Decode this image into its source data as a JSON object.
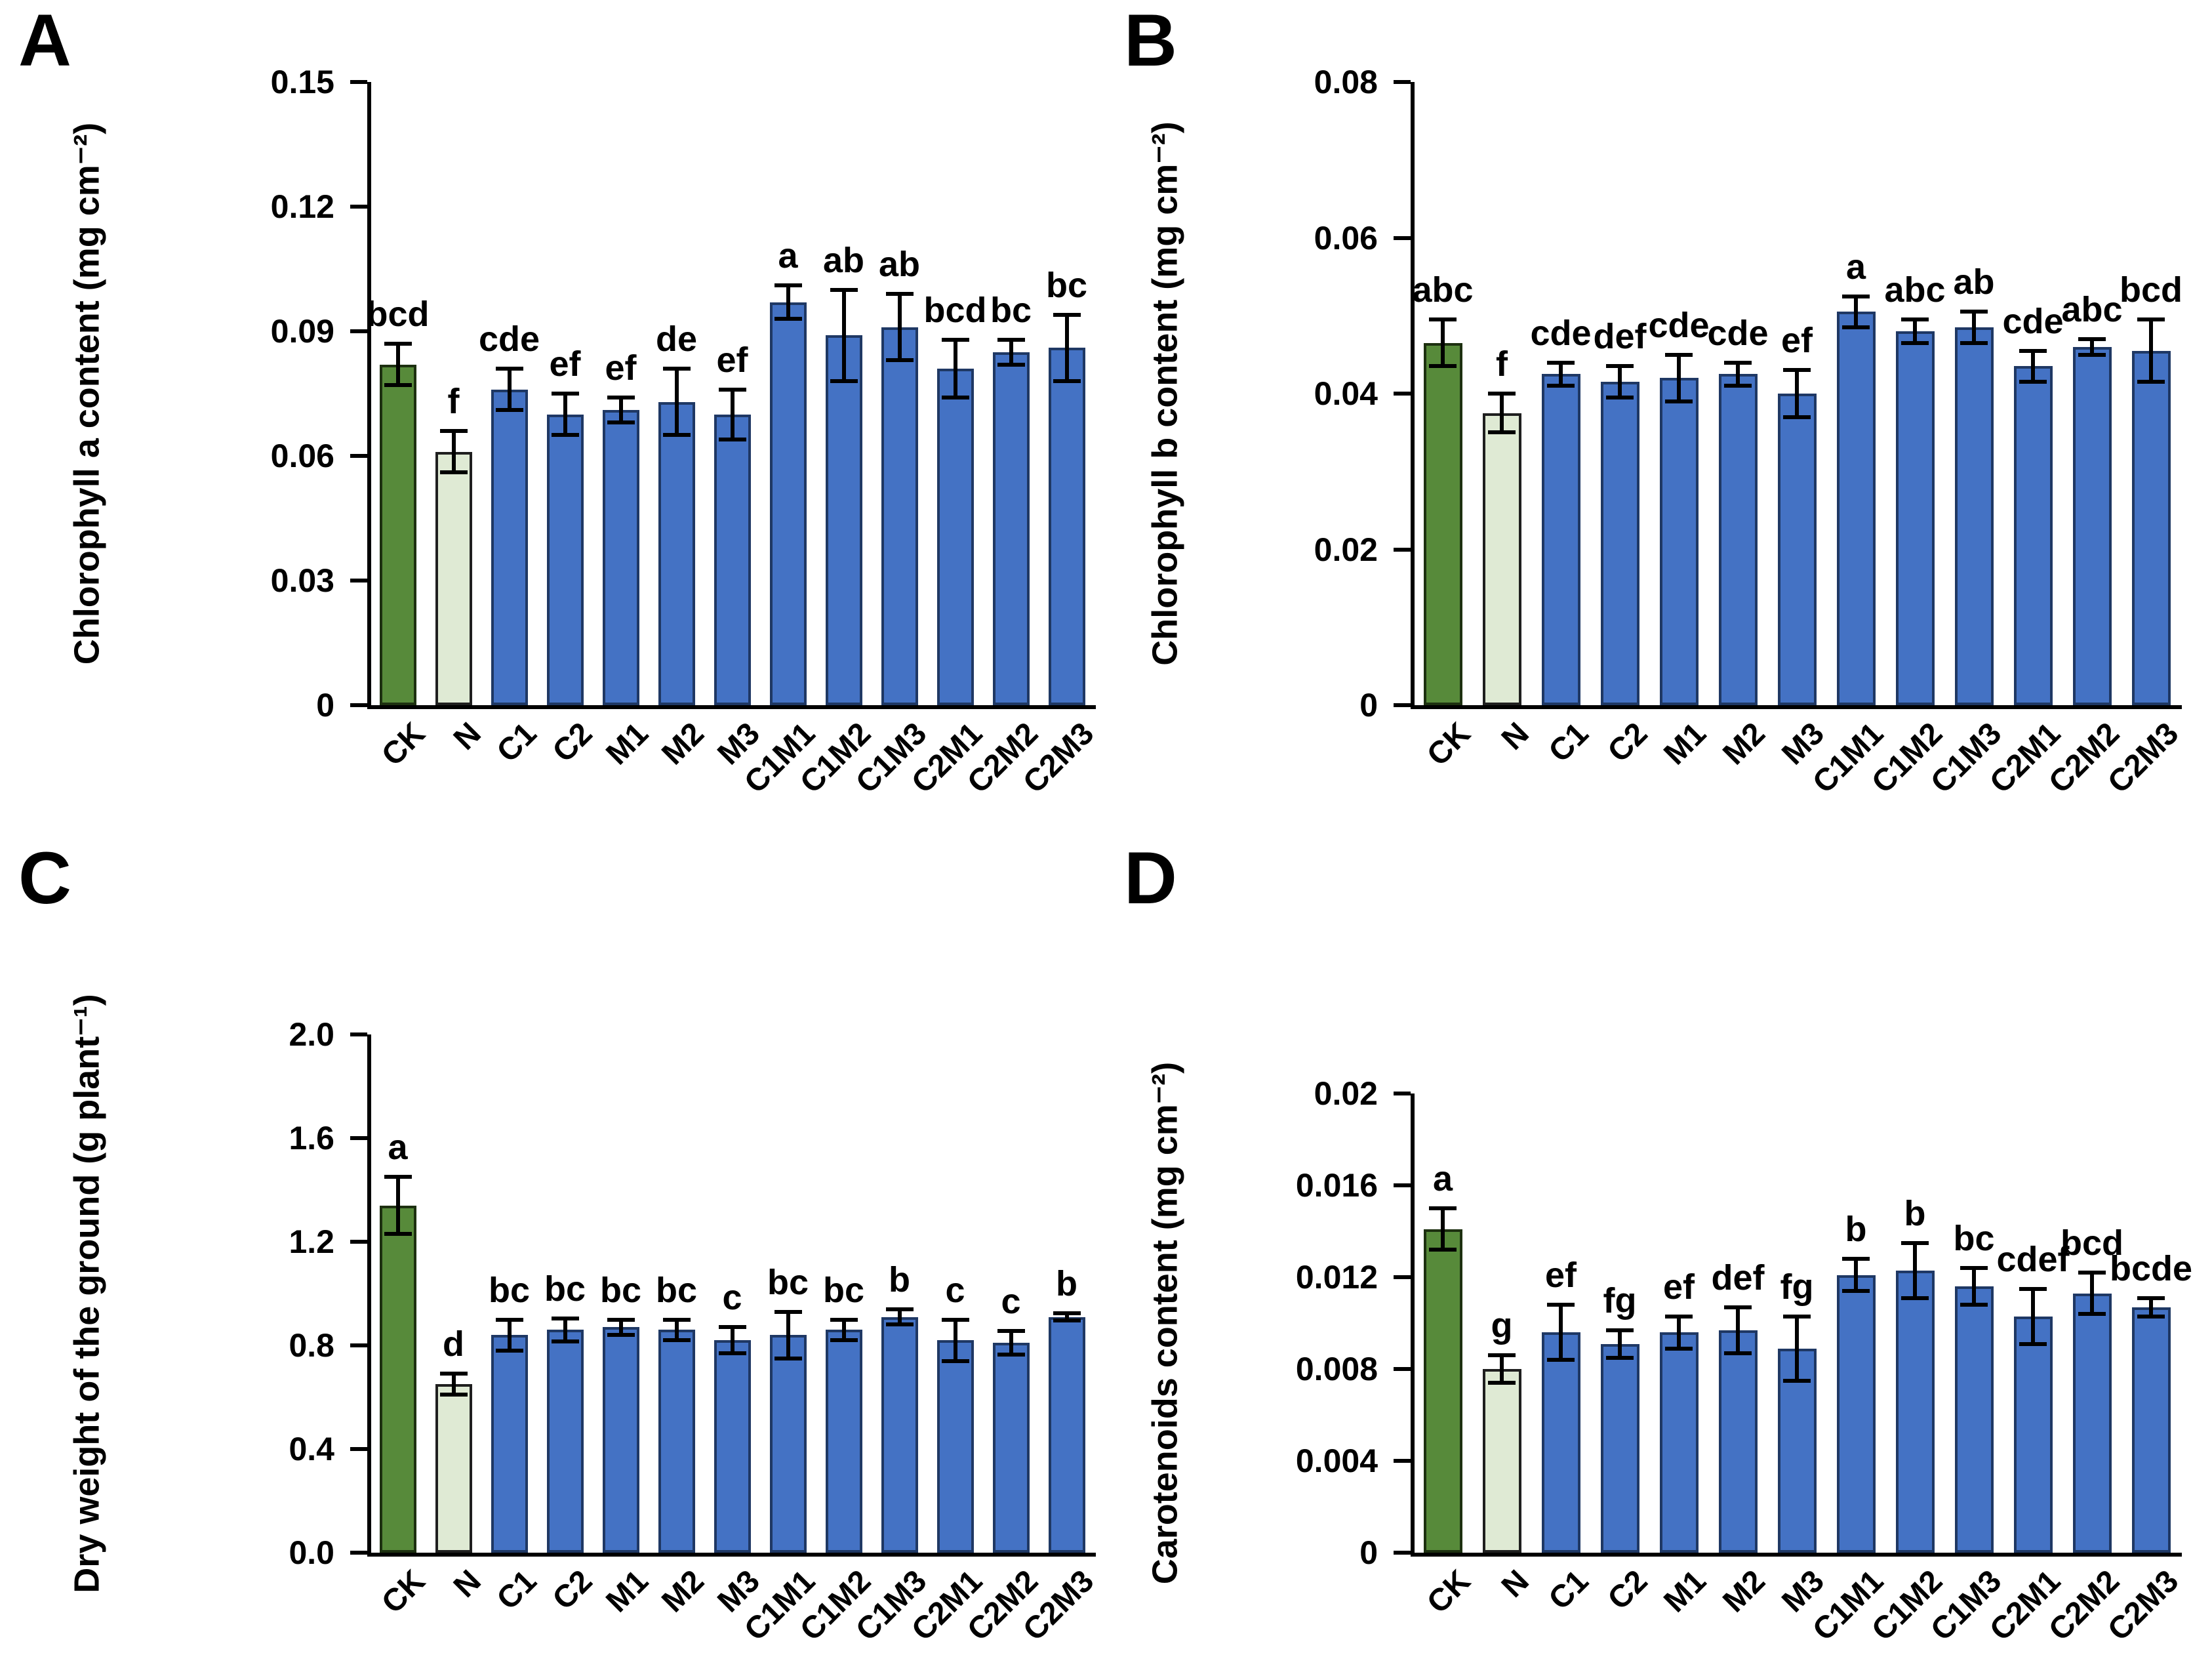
{
  "colors": {
    "ck_fill": "#578a3a",
    "ck_border": "#1d3010",
    "n_fill": "#dfead4",
    "n_border": "#1f1f1f",
    "treatment_fill": "#4472c4",
    "treatment_border": "#1f3864",
    "error_bar": "#000000",
    "axis": "#000000",
    "background": "#ffffff"
  },
  "chart_data": [
    {
      "panel_label": "A",
      "type": "bar",
      "ylabel": "Chlorophyll a content (mg cm⁻²)",
      "xlabel": "",
      "ylim": [
        0,
        0.15
      ],
      "yticks": [
        "0.15",
        "0.12",
        "0.09",
        "0.06",
        "0.03",
        "0"
      ],
      "grid": false,
      "legend": "none",
      "categories": [
        "CK",
        "N",
        "C1",
        "C2",
        "M1",
        "M2",
        "M3",
        "C1M1",
        "C1M2",
        "C1M3",
        "C2M1",
        "C2M2",
        "C2M3"
      ],
      "values": [
        0.082,
        0.061,
        0.076,
        0.07,
        0.071,
        0.073,
        0.07,
        0.097,
        0.089,
        0.091,
        0.081,
        0.085,
        0.086
      ],
      "errors": [
        0.005,
        0.005,
        0.005,
        0.005,
        0.003,
        0.008,
        0.006,
        0.004,
        0.011,
        0.008,
        0.007,
        0.003,
        0.008
      ],
      "sig_letters": [
        "bcd",
        "f",
        "cde",
        "ef",
        "ef",
        "de",
        "ef",
        "a",
        "ab",
        "ab",
        "bcd",
        "bc",
        "bc"
      ]
    },
    {
      "panel_label": "B",
      "type": "bar",
      "ylabel": "Chlorophyll b  content (mg cm⁻²)",
      "xlabel": "",
      "ylim": [
        0,
        0.08
      ],
      "yticks": [
        "0.08",
        "0.06",
        "0.04",
        "0.02",
        "0"
      ],
      "grid": false,
      "legend": "none",
      "categories": [
        "CK",
        "N",
        "C1",
        "C2",
        "M1",
        "M2",
        "M3",
        "C1M1",
        "C1M2",
        "C1M3",
        "C2M1",
        "C2M2",
        "C2M3"
      ],
      "values": [
        0.0465,
        0.0375,
        0.0425,
        0.0415,
        0.042,
        0.0425,
        0.04,
        0.0505,
        0.048,
        0.0485,
        0.0435,
        0.046,
        0.0455
      ],
      "errors": [
        0.003,
        0.0025,
        0.0015,
        0.002,
        0.003,
        0.0015,
        0.003,
        0.002,
        0.0015,
        0.002,
        0.002,
        0.001,
        0.004
      ],
      "sig_letters": [
        "abc",
        "f",
        "cde",
        "def",
        "cde",
        "cde",
        "ef",
        "a",
        "abc",
        "ab",
        "cde",
        "abc",
        "bcd"
      ]
    },
    {
      "panel_label": "C",
      "type": "bar",
      "ylabel": "Dry weight of the ground (g plant⁻¹)",
      "xlabel": "",
      "ylim": [
        0,
        2.0
      ],
      "yticks": [
        "2.0",
        "1.6",
        "1.2",
        "0.8",
        "0.4",
        "0.0"
      ],
      "grid": false,
      "legend": "none",
      "categories": [
        "CK",
        "N",
        "C1",
        "C2",
        "M1",
        "M2",
        "M3",
        "C1M1",
        "C1M2",
        "C1M3",
        "C2M1",
        "C2M2",
        "C2M3"
      ],
      "values": [
        1.34,
        0.65,
        0.84,
        0.86,
        0.87,
        0.86,
        0.82,
        0.84,
        0.86,
        0.91,
        0.82,
        0.81,
        0.91
      ],
      "errors": [
        0.11,
        0.04,
        0.06,
        0.045,
        0.03,
        0.04,
        0.05,
        0.09,
        0.04,
        0.03,
        0.08,
        0.045,
        0.015
      ],
      "sig_letters": [
        "a",
        "d",
        "bc",
        "bc",
        "bc",
        "bc",
        "c",
        "bc",
        "bc",
        "b",
        "c",
        "c",
        "b"
      ]
    },
    {
      "panel_label": "D",
      "type": "bar",
      "ylabel": "Carotenoids content (mg cm⁻²)",
      "xlabel": "",
      "ylim": [
        0,
        0.02
      ],
      "yticks": [
        "0.02",
        "0.016",
        "0.012",
        "0.008",
        "0.004",
        "0"
      ],
      "grid": false,
      "legend": "none",
      "categories": [
        "CK",
        "N",
        "C1",
        "C2",
        "M1",
        "M2",
        "M3",
        "C1M1",
        "C1M2",
        "C1M3",
        "C2M1",
        "C2M2",
        "C2M3"
      ],
      "values": [
        0.0141,
        0.008,
        0.0096,
        0.0091,
        0.0096,
        0.0097,
        0.0089,
        0.0121,
        0.0123,
        0.0116,
        0.0103,
        0.0113,
        0.0107
      ],
      "errors": [
        0.0009,
        0.0006,
        0.0012,
        0.0006,
        0.0007,
        0.001,
        0.0014,
        0.0007,
        0.0012,
        0.0008,
        0.0012,
        0.0009,
        0.0004
      ],
      "sig_letters": [
        "a",
        "g",
        "ef",
        "fg",
        "ef",
        "def",
        "fg",
        "b",
        "b",
        "bc",
        "cdef",
        "bcd",
        "bcde"
      ]
    }
  ]
}
